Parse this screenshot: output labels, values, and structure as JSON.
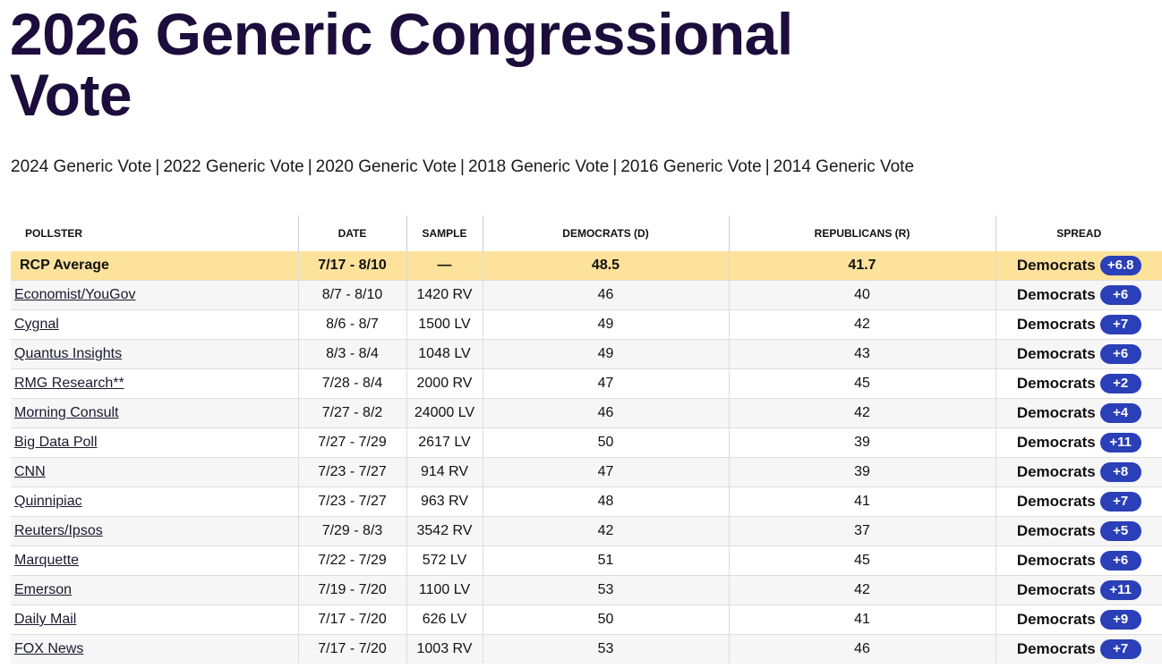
{
  "page": {
    "title": "2026 Generic Congressional Vote"
  },
  "links": [
    "2024 Generic Vote",
    "2022 Generic Vote",
    "2020 Generic Vote",
    "2018 Generic Vote",
    "2016 Generic Vote",
    "2014 Generic Vote"
  ],
  "table": {
    "headers": [
      "POLLSTER",
      "DATE",
      "SAMPLE",
      "DEMOCRATS (D)",
      "REPUBLICANS (R)",
      "SPREAD"
    ],
    "average": {
      "pollster": "RCP Average",
      "date": "7/17 - 8/10",
      "sample": "—",
      "dem": "48.5",
      "rep": "41.7",
      "party": "Democrats",
      "spread": "+6.8"
    },
    "rows": [
      {
        "pollster": "Economist/YouGov",
        "date": "8/7 - 8/10",
        "sample": "1420 RV",
        "dem": "46",
        "rep": "40",
        "party": "Democrats",
        "spread": "+6"
      },
      {
        "pollster": "Cygnal",
        "date": "8/6 - 8/7",
        "sample": "1500 LV",
        "dem": "49",
        "rep": "42",
        "party": "Democrats",
        "spread": "+7"
      },
      {
        "pollster": "Quantus Insights",
        "date": "8/3 - 8/4",
        "sample": "1048 LV",
        "dem": "49",
        "rep": "43",
        "party": "Democrats",
        "spread": "+6"
      },
      {
        "pollster": "RMG Research**",
        "date": "7/28 - 8/4",
        "sample": "2000 RV",
        "dem": "47",
        "rep": "45",
        "party": "Democrats",
        "spread": "+2"
      },
      {
        "pollster": "Morning Consult",
        "date": "7/27 - 8/2",
        "sample": "24000 LV",
        "dem": "46",
        "rep": "42",
        "party": "Democrats",
        "spread": "+4"
      },
      {
        "pollster": "Big Data Poll",
        "date": "7/27 - 7/29",
        "sample": "2617 LV",
        "dem": "50",
        "rep": "39",
        "party": "Democrats",
        "spread": "+11"
      },
      {
        "pollster": "CNN",
        "date": "7/23 - 7/27",
        "sample": "914 RV",
        "dem": "47",
        "rep": "39",
        "party": "Democrats",
        "spread": "+8"
      },
      {
        "pollster": "Quinnipiac",
        "date": "7/23 - 7/27",
        "sample": "963 RV",
        "dem": "48",
        "rep": "41",
        "party": "Democrats",
        "spread": "+7"
      },
      {
        "pollster": "Reuters/Ipsos",
        "date": "7/29 - 8/3",
        "sample": "3542 RV",
        "dem": "42",
        "rep": "37",
        "party": "Democrats",
        "spread": "+5"
      },
      {
        "pollster": "Marquette",
        "date": "7/22 - 7/29",
        "sample": "572 LV",
        "dem": "51",
        "rep": "45",
        "party": "Democrats",
        "spread": "+6"
      },
      {
        "pollster": "Emerson",
        "date": "7/19 - 7/20",
        "sample": "1100 LV",
        "dem": "53",
        "rep": "42",
        "party": "Democrats",
        "spread": "+11"
      },
      {
        "pollster": "Daily Mail",
        "date": "7/17 - 7/20",
        "sample": "626 LV",
        "dem": "50",
        "rep": "41",
        "party": "Democrats",
        "spread": "+9"
      },
      {
        "pollster": "FOX News",
        "date": "7/17 - 7/20",
        "sample": "1003 RV",
        "dem": "53",
        "rep": "46",
        "party": "Democrats",
        "spread": "+7"
      }
    ]
  },
  "colors": {
    "title": "#1c0d3c",
    "average_row": "#fde29c",
    "badge": "#2a3fb8"
  }
}
